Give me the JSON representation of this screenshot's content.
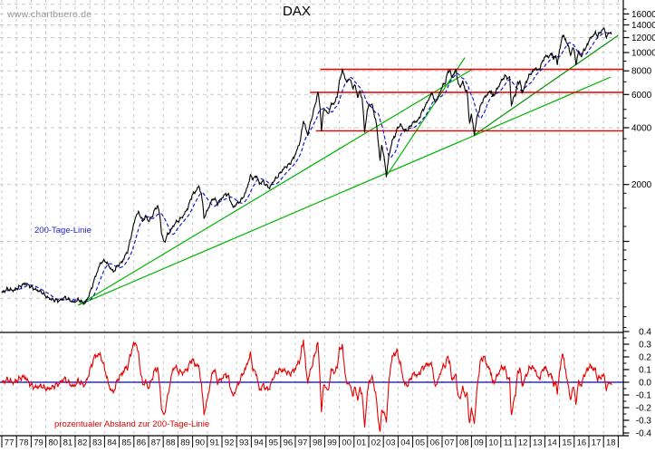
{
  "watermark": "www.chartbuero.de",
  "title": "DAX",
  "colors": {
    "price": "#000000",
    "ma": "#1a1acc",
    "trend_light": "#00b400",
    "trend_dark": "#009300",
    "resistance": "#e60000",
    "ratio": "#e60000",
    "zero_line": "#0000dd",
    "grid": "#c9c9c9",
    "axis": "#000000",
    "watermark": "#9b9b9b",
    "label_blue": "#2323cc",
    "label_red": "#e60000",
    "tick_text": "#111111"
  },
  "chart_data": {
    "type": "line",
    "title": "DAX",
    "x_axis": {
      "year_labels": [
        "77",
        "78",
        "79",
        "80",
        "81",
        "82",
        "83",
        "84",
        "85",
        "86",
        "87",
        "88",
        "89",
        "90",
        "91",
        "92",
        "93",
        "94",
        "95",
        "96",
        "97",
        "98",
        "99",
        "00",
        "01",
        "02",
        "03",
        "04",
        "05",
        "06",
        "07",
        "08",
        "09",
        "10",
        "11",
        "12",
        "13",
        "14",
        "15",
        "16",
        "17",
        "18"
      ]
    },
    "main_panel": {
      "scale": "log",
      "ylim": [
        330,
        18900
      ],
      "yticks": [
        {
          "value": 16000,
          "label": "16000"
        },
        {
          "value": 14000,
          "label": "14000"
        },
        {
          "value": 12000,
          "label": "12000"
        },
        {
          "value": 10000,
          "label": "10000"
        },
        {
          "value": 8000,
          "label": "8000"
        },
        {
          "value": 6000,
          "label": "6000"
        },
        {
          "value": 4000,
          "label": "4000"
        },
        {
          "value": 2000,
          "label": "2000"
        },
        {
          "value": 1000,
          "label": ""
        }
      ],
      "yticks_minor": [
        17000,
        15000,
        13000,
        11000,
        9000,
        7000,
        5000,
        4500,
        3500,
        3000,
        2500,
        1800,
        1500,
        1200,
        900,
        800,
        700,
        600,
        450,
        400,
        350
      ],
      "grid_levels": [
        18000,
        16000,
        14000,
        12000,
        10000,
        8000,
        6000,
        4000,
        2000,
        1000,
        500
      ],
      "ma_label": "200-Tage-Linie",
      "resistance_lines": [
        {
          "value": 8150,
          "start_year": 1998.7
        },
        {
          "value": 6150,
          "start_year": 1998.0
        },
        {
          "value": 3850,
          "start_year": 1998.4
        }
      ],
      "trend_lines": [
        {
          "from": [
            1982.2,
            459
          ],
          "to": [
            2009.0,
            8110
          ],
          "shade": "light"
        },
        {
          "from": [
            1982.2,
            459
          ],
          "to": [
            2018.5,
            7420
          ],
          "shade": "light"
        },
        {
          "from": [
            2003.25,
            2250
          ],
          "to": [
            2008.55,
            9400
          ],
          "shade": "light"
        },
        {
          "from": [
            2009.2,
            3660
          ],
          "to": [
            2019.0,
            12330
          ],
          "shade": "dark"
        }
      ],
      "price_anchors": [
        [
          1977.0,
          535
        ],
        [
          1977.4,
          560
        ],
        [
          1977.8,
          550
        ],
        [
          1978.2,
          575
        ],
        [
          1978.6,
          600
        ],
        [
          1978.9,
          580
        ],
        [
          1979.3,
          555
        ],
        [
          1979.7,
          540
        ],
        [
          1980.1,
          505
        ],
        [
          1980.5,
          490
        ],
        [
          1980.9,
          485
        ],
        [
          1981.3,
          505
        ],
        [
          1981.6,
          490
        ],
        [
          1981.9,
          475
        ],
        [
          1982.2,
          492
        ],
        [
          1982.45,
          478
        ],
        [
          1982.65,
          468
        ],
        [
          1982.85,
          500
        ],
        [
          1983.1,
          560
        ],
        [
          1983.4,
          660
        ],
        [
          1983.75,
          775
        ],
        [
          1984.05,
          790
        ],
        [
          1984.3,
          740
        ],
        [
          1984.6,
          690
        ],
        [
          1984.9,
          745
        ],
        [
          1985.2,
          780
        ],
        [
          1985.6,
          900
        ],
        [
          1985.9,
          1150
        ],
        [
          1986.15,
          1380
        ],
        [
          1986.35,
          1420
        ],
        [
          1986.6,
          1280
        ],
        [
          1986.8,
          1360
        ],
        [
          1987.0,
          1280
        ],
        [
          1987.2,
          1340
        ],
        [
          1987.45,
          1480
        ],
        [
          1987.62,
          1550
        ],
        [
          1987.78,
          1350
        ],
        [
          1987.88,
          1120
        ],
        [
          1988.05,
          980
        ],
        [
          1988.25,
          1070
        ],
        [
          1988.5,
          1140
        ],
        [
          1988.8,
          1250
        ],
        [
          1989.1,
          1300
        ],
        [
          1989.4,
          1380
        ],
        [
          1989.7,
          1520
        ],
        [
          1989.95,
          1750
        ],
        [
          1990.15,
          1820
        ],
        [
          1990.42,
          1950
        ],
        [
          1990.6,
          1800
        ],
        [
          1990.78,
          1340
        ],
        [
          1991.0,
          1450
        ],
        [
          1991.25,
          1620
        ],
        [
          1991.45,
          1700
        ],
        [
          1991.7,
          1590
        ],
        [
          1992.0,
          1700
        ],
        [
          1992.25,
          1780
        ],
        [
          1992.45,
          1760
        ],
        [
          1992.75,
          1510
        ],
        [
          1993.0,
          1580
        ],
        [
          1993.3,
          1650
        ],
        [
          1993.6,
          1800
        ],
        [
          1993.95,
          2230
        ],
        [
          1994.15,
          2140
        ],
        [
          1994.35,
          2240
        ],
        [
          1994.55,
          2020
        ],
        [
          1994.8,
          2080
        ],
        [
          1995.05,
          1970
        ],
        [
          1995.25,
          1920
        ],
        [
          1995.5,
          2080
        ],
        [
          1995.75,
          2180
        ],
        [
          1996.0,
          2320
        ],
        [
          1996.3,
          2470
        ],
        [
          1996.6,
          2560
        ],
        [
          1996.9,
          2780
        ],
        [
          1997.1,
          3020
        ],
        [
          1997.35,
          3450
        ],
        [
          1997.55,
          4380
        ],
        [
          1997.75,
          3850
        ],
        [
          1997.85,
          3680
        ],
        [
          1998.05,
          4300
        ],
        [
          1998.3,
          5100
        ],
        [
          1998.54,
          6170
        ],
        [
          1998.68,
          5200
        ],
        [
          1998.78,
          3870
        ],
        [
          1998.92,
          4900
        ],
        [
          1999.05,
          5050
        ],
        [
          1999.2,
          4680
        ],
        [
          1999.45,
          5300
        ],
        [
          1999.7,
          5450
        ],
        [
          1999.85,
          5900
        ],
        [
          2000.0,
          6960
        ],
        [
          2000.2,
          8100
        ],
        [
          2000.35,
          7450
        ],
        [
          2000.55,
          6900
        ],
        [
          2000.7,
          7400
        ],
        [
          2000.9,
          6500
        ],
        [
          2001.05,
          6750
        ],
        [
          2001.25,
          5850
        ],
        [
          2001.4,
          6200
        ],
        [
          2001.55,
          5750
        ],
        [
          2001.72,
          3820
        ],
        [
          2001.9,
          4900
        ],
        [
          2002.0,
          5250
        ],
        [
          2002.2,
          5350
        ],
        [
          2002.35,
          4850
        ],
        [
          2002.55,
          4050
        ],
        [
          2002.78,
          2640
        ],
        [
          2002.88,
          3250
        ],
        [
          2003.0,
          2950
        ],
        [
          2003.2,
          2240
        ],
        [
          2003.4,
          2900
        ],
        [
          2003.6,
          3400
        ],
        [
          2003.8,
          3650
        ],
        [
          2004.0,
          4050
        ],
        [
          2004.2,
          4130
        ],
        [
          2004.45,
          3850
        ],
        [
          2004.65,
          3880
        ],
        [
          2004.9,
          4150
        ],
        [
          2005.1,
          4300
        ],
        [
          2005.35,
          4350
        ],
        [
          2005.6,
          4800
        ],
        [
          2005.9,
          5300
        ],
        [
          2006.1,
          5700
        ],
        [
          2006.35,
          6130
        ],
        [
          2006.5,
          5400
        ],
        [
          2006.75,
          5850
        ],
        [
          2007.0,
          6600
        ],
        [
          2007.2,
          6900
        ],
        [
          2007.4,
          7900
        ],
        [
          2007.55,
          8100
        ],
        [
          2007.65,
          7300
        ],
        [
          2007.8,
          7800
        ],
        [
          2007.95,
          8050
        ],
        [
          2008.1,
          6900
        ],
        [
          2008.2,
          6500
        ],
        [
          2008.4,
          7050
        ],
        [
          2008.55,
          6400
        ],
        [
          2008.7,
          6250
        ],
        [
          2008.8,
          4850
        ],
        [
          2008.87,
          4300
        ],
        [
          2009.0,
          4650
        ],
        [
          2009.1,
          4200
        ],
        [
          2009.2,
          3690
        ],
        [
          2009.4,
          4650
        ],
        [
          2009.6,
          5150
        ],
        [
          2009.8,
          5650
        ],
        [
          2010.0,
          5900
        ],
        [
          2010.2,
          6150
        ],
        [
          2010.35,
          6280
        ],
        [
          2010.45,
          5800
        ],
        [
          2010.6,
          6100
        ],
        [
          2010.8,
          6500
        ],
        [
          2011.0,
          7000
        ],
        [
          2011.15,
          7300
        ],
        [
          2011.35,
          7520
        ],
        [
          2011.5,
          7250
        ],
        [
          2011.6,
          7400
        ],
        [
          2011.72,
          5250
        ],
        [
          2011.85,
          5700
        ],
        [
          2012.0,
          6050
        ],
        [
          2012.15,
          6850
        ],
        [
          2012.3,
          7100
        ],
        [
          2012.45,
          6100
        ],
        [
          2012.6,
          6550
        ],
        [
          2012.8,
          7200
        ],
        [
          2013.0,
          7700
        ],
        [
          2013.2,
          7950
        ],
        [
          2013.4,
          8350
        ],
        [
          2013.5,
          7950
        ],
        [
          2013.7,
          8400
        ],
        [
          2013.95,
          9400
        ],
        [
          2014.1,
          9600
        ],
        [
          2014.3,
          9500
        ],
        [
          2014.5,
          10000
        ],
        [
          2014.6,
          9150
        ],
        [
          2014.75,
          9700
        ],
        [
          2014.85,
          8650
        ],
        [
          2015.0,
          10250
        ],
        [
          2015.15,
          11800
        ],
        [
          2015.3,
          12370
        ],
        [
          2015.45,
          11300
        ],
        [
          2015.6,
          11000
        ],
        [
          2015.75,
          9550
        ],
        [
          2015.9,
          10800
        ],
        [
          2016.0,
          10100
        ],
        [
          2016.12,
          8780
        ],
        [
          2016.3,
          10050
        ],
        [
          2016.5,
          9550
        ],
        [
          2016.65,
          10300
        ],
        [
          2016.85,
          10700
        ],
        [
          2017.0,
          11600
        ],
        [
          2017.2,
          12100
        ],
        [
          2017.45,
          12700
        ],
        [
          2017.6,
          12250
        ],
        [
          2017.8,
          12900
        ],
        [
          2017.95,
          13150
        ],
        [
          2018.05,
          13550
        ],
        [
          2018.2,
          11900
        ],
        [
          2018.3,
          12450
        ],
        [
          2018.42,
          12950
        ],
        [
          2018.55,
          12350
        ]
      ]
    },
    "lower_panel": {
      "label": "prozentualer Abstand zur 200-Tage-Linie",
      "ylim": [
        -0.43,
        0.39
      ],
      "yticks": [
        {
          "value": 0.4,
          "label": "0.4"
        },
        {
          "value": 0.3,
          "label": "0.3"
        },
        {
          "value": 0.2,
          "label": "0.2"
        },
        {
          "value": 0.1,
          "label": "0.1"
        },
        {
          "value": 0.0,
          "label": "0.0"
        },
        {
          "value": -0.1,
          "label": "-0.1"
        },
        {
          "value": -0.2,
          "label": "-0.2"
        },
        {
          "value": -0.3,
          "label": "-0.3"
        },
        {
          "value": -0.4,
          "label": "-0.4"
        }
      ],
      "yticks_minor": [
        0.35,
        0.25,
        0.15,
        0.05,
        -0.05,
        -0.15,
        -0.25,
        -0.35
      ],
      "series_note": "price divided by 200-day average minus 1, derived from price_anchors"
    }
  }
}
